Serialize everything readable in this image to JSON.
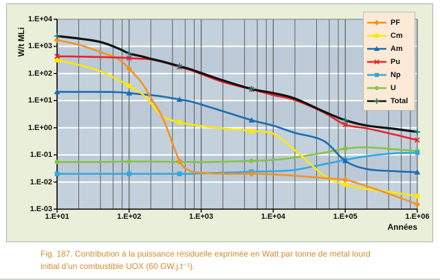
{
  "figure": {
    "caption_line1": "Fig. 187. Contribution à la puissance résiduelle exprimée en Watt par tonne de métal lourd",
    "caption_line2": "initial d’un combustible UOX (60 GW.j.t⁻¹)."
  },
  "chart_data": {
    "type": "line",
    "x_scale": "log",
    "y_scale": "log",
    "title": "",
    "xlabel": "Années",
    "ylabel": "W/t MLi",
    "xlim": [
      10,
      1000000
    ],
    "ylim": [
      0.001,
      10000
    ],
    "x_tick_labels": [
      "1.E+01",
      "1.E+02",
      "1.E+03",
      "1.E+04",
      "1.E+05",
      "1.E+06"
    ],
    "y_tick_labels": [
      "1.E+04",
      "1.E+03",
      "1.E+02",
      "1.E+01",
      "1.E+00",
      "1.E-01",
      "1.E-02",
      "1.E-03"
    ],
    "grid": "on",
    "legend_position": "top-right",
    "x": [
      10,
      20,
      40,
      70,
      100,
      150,
      200,
      300,
      500,
      700,
      1000,
      2000,
      5000,
      10000,
      20000,
      50000,
      100000,
      200000,
      500000,
      1000000
    ],
    "series": [
      {
        "name": "PF",
        "color": "#f5921f",
        "marker": "diamond",
        "values": [
          1700,
          1150,
          620,
          350,
          150,
          45,
          13,
          2,
          0.06,
          0.026,
          0.022,
          0.02,
          0.02,
          0.019,
          0.017,
          0.014,
          0.012,
          0.007,
          0.003,
          0.0015
        ]
      },
      {
        "name": "Cm",
        "color": "#ffe800",
        "marker": "square",
        "values": [
          310,
          210,
          120,
          60,
          35,
          18,
          8,
          2.5,
          1.6,
          1.35,
          1.15,
          0.95,
          0.75,
          0.6,
          0.15,
          0.018,
          0.008,
          0.0055,
          0.004,
          0.003
        ]
      },
      {
        "name": "Am",
        "color": "#1a6cb5",
        "marker": "triangle",
        "values": [
          21,
          21,
          21,
          20.5,
          19,
          17,
          16,
          14,
          11,
          9.5,
          7.2,
          4.1,
          1.9,
          1.2,
          0.65,
          0.33,
          0.06,
          0.03,
          0.025,
          0.023
        ]
      },
      {
        "name": "Pu",
        "color": "#e8232b",
        "marker": "x",
        "values": [
          430,
          420,
          405,
          390,
          370,
          350,
          330,
          260,
          175,
          135,
          95,
          49,
          26,
          16,
          10.5,
          3.7,
          1.3,
          0.95,
          0.55,
          0.35
        ]
      },
      {
        "name": "Np",
        "color": "#33a7e0",
        "marker": "square",
        "values": [
          0.02,
          0.02,
          0.02,
          0.02,
          0.02,
          0.02,
          0.02,
          0.02,
          0.02,
          0.02,
          0.021,
          0.022,
          0.024,
          0.025,
          0.028,
          0.045,
          0.065,
          0.09,
          0.115,
          0.12
        ]
      },
      {
        "name": "U",
        "color": "#85c440",
        "marker": "circle",
        "values": [
          0.055,
          0.055,
          0.055,
          0.056,
          0.057,
          0.057,
          0.057,
          0.056,
          0.055,
          0.055,
          0.054,
          0.056,
          0.06,
          0.065,
          0.08,
          0.12,
          0.17,
          0.19,
          0.16,
          0.14
        ]
      },
      {
        "name": "Total",
        "color": "#111111",
        "marker": "plus",
        "marker_color": "#157f7f",
        "values": [
          2400,
          1950,
          1450,
          850,
          550,
          430,
          350,
          270,
          185,
          145,
          105,
          56,
          27,
          19,
          12,
          4.0,
          1.9,
          1.2,
          0.9,
          0.7
        ]
      }
    ],
    "colors": {
      "plot_background": "#c3d1dc",
      "plot_band_alt": "#bbcad6",
      "h_gridline": "#ffffff",
      "v_gridline": "#4f4f4f",
      "axis": "#000000",
      "panel_background": "#e9efd8",
      "legend_background": "#fcead6",
      "caption_text": "#cf8b2d"
    }
  }
}
